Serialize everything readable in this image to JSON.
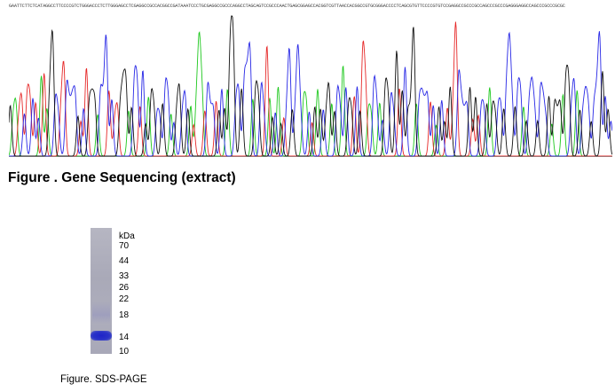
{
  "sequencing": {
    "bases": "GAATTCTTCTCATAGGCCTTCCCCGTCTGGGACCCTCTTGGGAGCCTCGAGGCCGCCACGGCCGATAAATCCCTGCGAGGCCGCCCAGGCCTAGCAGTCCGCCCAACTGAGCGGAGCCACGGTCGTTAACCACGGCCGTGCGGGACCCCTCAGCGTGTTCCCCGTGTCCGAGGCCGCCCGCCAGCCCGCCCGAGGGAGGCCAGCCCGCCCGCGC",
    "caption": "Figure . Gene Sequencing (extract)",
    "trace_colors": {
      "A": "#1ec81e",
      "C": "#2828e6",
      "G": "#111111",
      "T": "#e62828"
    }
  },
  "gel": {
    "marker_unit": "kDa",
    "markers": [
      "70",
      "44",
      "33",
      "26",
      "22",
      "18",
      "14",
      "10"
    ],
    "band_color": "#1f24c8",
    "caption": "Figure. SDS-PAGE"
  }
}
